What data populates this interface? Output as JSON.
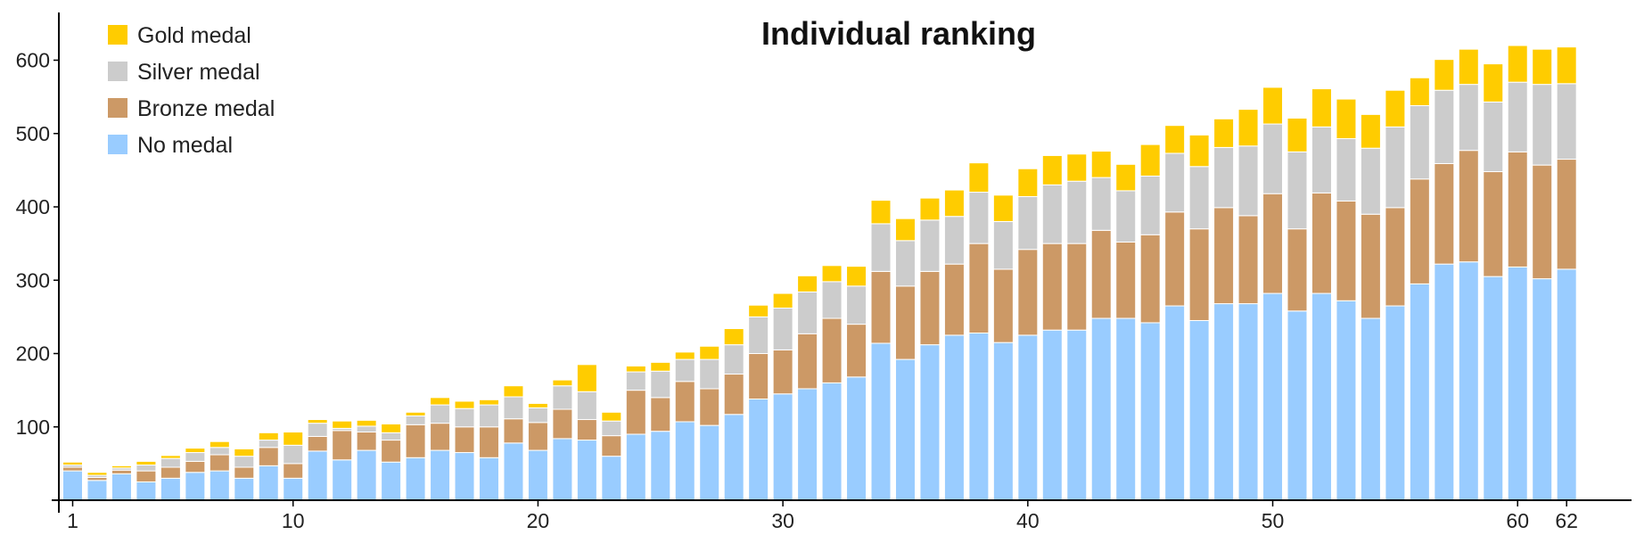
{
  "chart_data": {
    "type": "bar",
    "stacked": true,
    "title": "Individual ranking",
    "xlabel": "",
    "ylabel": "",
    "ylim": [
      0,
      660
    ],
    "y_ticks": [
      100,
      200,
      300,
      400,
      500,
      600
    ],
    "x_tick_labels": [
      1,
      10,
      20,
      30,
      40,
      50,
      60,
      62
    ],
    "grid": false,
    "legend_position": "top-left",
    "categories": [
      1,
      2,
      3,
      4,
      5,
      6,
      7,
      8,
      9,
      10,
      11,
      12,
      13,
      14,
      15,
      16,
      17,
      18,
      19,
      20,
      21,
      22,
      23,
      24,
      25,
      26,
      27,
      28,
      29,
      30,
      31,
      32,
      33,
      34,
      35,
      36,
      37,
      38,
      39,
      40,
      41,
      42,
      43,
      44,
      45,
      46,
      47,
      48,
      49,
      50,
      51,
      52,
      53,
      54,
      55,
      56,
      57,
      58,
      59,
      60,
      61,
      62
    ],
    "series": [
      {
        "name": "No medal",
        "color": "#99ccff",
        "values": [
          40,
          27,
          36,
          25,
          30,
          38,
          40,
          30,
          47,
          30,
          67,
          55,
          68,
          52,
          58,
          68,
          65,
          58,
          78,
          68,
          84,
          82,
          60,
          90,
          94,
          107,
          102,
          117,
          138,
          145,
          152,
          160,
          168,
          214,
          192,
          212,
          225,
          228,
          215,
          225,
          232,
          232,
          248,
          248,
          242,
          265,
          245,
          268,
          268,
          282,
          258,
          282,
          272,
          248,
          265,
          295,
          322,
          325,
          305,
          318,
          302,
          315
        ]
      },
      {
        "name": "Bronze medal",
        "color": "#cc9966",
        "values": [
          5,
          4,
          5,
          15,
          15,
          15,
          22,
          15,
          25,
          20,
          20,
          40,
          25,
          30,
          45,
          37,
          35,
          42,
          33,
          38,
          40,
          28,
          28,
          60,
          46,
          55,
          50,
          55,
          62,
          60,
          75,
          88,
          72,
          98,
          100,
          100,
          97,
          122,
          100,
          117,
          118,
          118,
          120,
          104,
          120,
          128,
          125,
          131,
          120,
          136,
          112,
          137,
          136,
          142,
          134,
          143,
          137,
          152,
          143,
          157,
          155,
          150
        ]
      },
      {
        "name": "Silver medal",
        "color": "#cccccc",
        "values": [
          3,
          3,
          3,
          8,
          12,
          12,
          10,
          15,
          10,
          25,
          18,
          3,
          8,
          10,
          12,
          25,
          25,
          30,
          30,
          20,
          32,
          38,
          20,
          25,
          36,
          30,
          40,
          40,
          50,
          57,
          57,
          50,
          52,
          65,
          62,
          70,
          65,
          70,
          65,
          72,
          80,
          85,
          72,
          70,
          80,
          80,
          85,
          82,
          95,
          95,
          105,
          90,
          85,
          90,
          110,
          100,
          100,
          90,
          95,
          95,
          110,
          103
        ]
      },
      {
        "name": "Gold medal",
        "color": "#ffcc00",
        "values": [
          4,
          4,
          3,
          5,
          4,
          6,
          8,
          10,
          10,
          18,
          5,
          10,
          8,
          12,
          5,
          10,
          10,
          7,
          15,
          6,
          8,
          37,
          12,
          8,
          12,
          10,
          18,
          22,
          16,
          20,
          22,
          22,
          27,
          32,
          30,
          30,
          36,
          40,
          36,
          38,
          40,
          37,
          36,
          36,
          43,
          38,
          43,
          39,
          50,
          50,
          46,
          52,
          54,
          46,
          50,
          38,
          42,
          48,
          52,
          50,
          48,
          50
        ]
      }
    ]
  }
}
